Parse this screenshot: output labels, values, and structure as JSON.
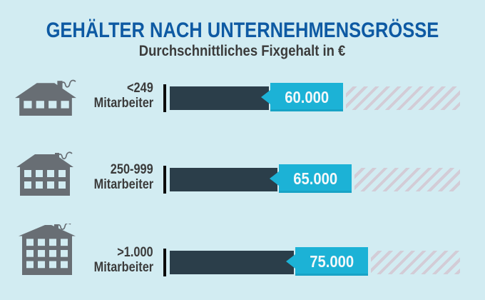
{
  "title": "GEHÄLTER NACH UNTERNEHMENSGRÖSSE",
  "subtitle": "Durchschnittliches Fixgehalt in €",
  "chart_data": {
    "type": "bar",
    "orientation": "horizontal",
    "title": "GEHÄLTER NACH UNTERNEHMENSGRÖSSE",
    "subtitle": "Durchschnittliches Fixgehalt in €",
    "unit": "EUR",
    "categories": [
      "<249 Mitarbeiter",
      "250-999 Mitarbeiter",
      ">1.000 Mitarbeiter"
    ],
    "values": [
      60000,
      65000,
      75000
    ],
    "value_labels": [
      "60.000",
      "65.000",
      "75.000"
    ],
    "xlim": [
      0,
      100000
    ],
    "grid": "off",
    "legend": "none"
  },
  "rows": [
    {
      "label_line1": "<249",
      "label_line2": "Mitarbeiter",
      "value_label": "60.000",
      "value": 60000,
      "icon": "factory-small-icon"
    },
    {
      "label_line1": "250-999",
      "label_line2": "Mitarbeiter",
      "value_label": "65.000",
      "value": 65000,
      "icon": "building-medium-icon"
    },
    {
      "label_line1": ">1.000",
      "label_line2": "Mitarbeiter",
      "value_label": "75.000",
      "value": 75000,
      "icon": "building-large-icon"
    }
  ],
  "colors": {
    "background": "#d2ecf2",
    "title": "#0e5aa3",
    "text": "#3b3b3b",
    "bar": "#2b3e4a",
    "value_tag": "#1cb2d6",
    "value_text": "#f4f8fa",
    "icon": "#686e74",
    "hatch": "#d3ccd6",
    "tick": "#0c0c0c"
  }
}
